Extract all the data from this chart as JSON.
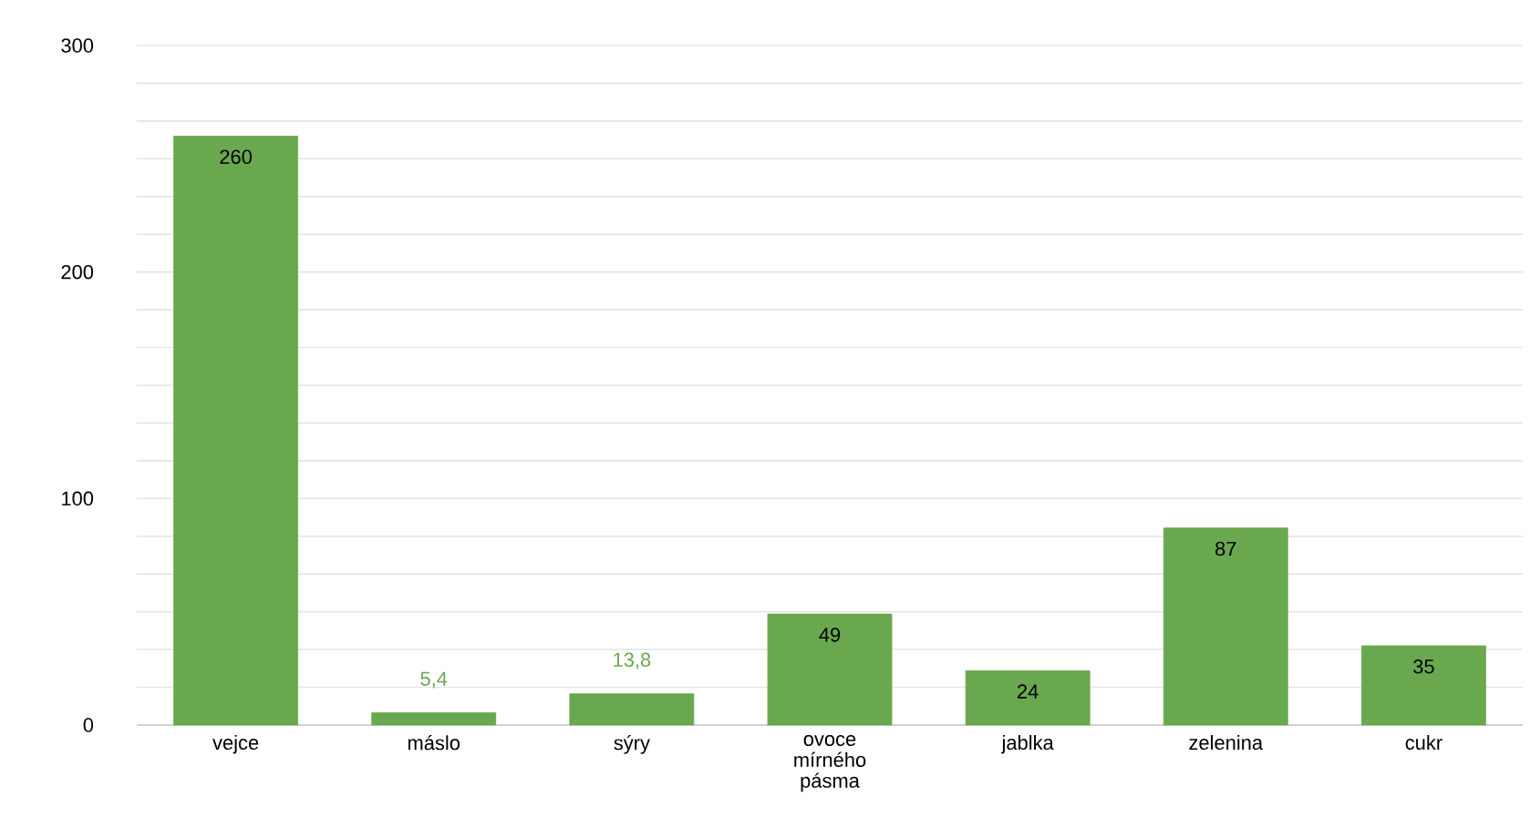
{
  "chart_data": {
    "type": "bar",
    "categories": [
      "vejce",
      "máslo",
      "sýry",
      "ovoce mírného pásma",
      "jablka",
      "zelenina",
      "cukr"
    ],
    "values": [
      260,
      5.4,
      13.8,
      49,
      24,
      87,
      35
    ],
    "value_labels": [
      "260",
      "5,4",
      "13,8",
      "49",
      "24",
      "87",
      "35"
    ],
    "color": "#6aa84f",
    "ylim": [
      0,
      300
    ],
    "yticks": [
      0,
      100,
      200,
      300
    ],
    "grid": "y"
  }
}
